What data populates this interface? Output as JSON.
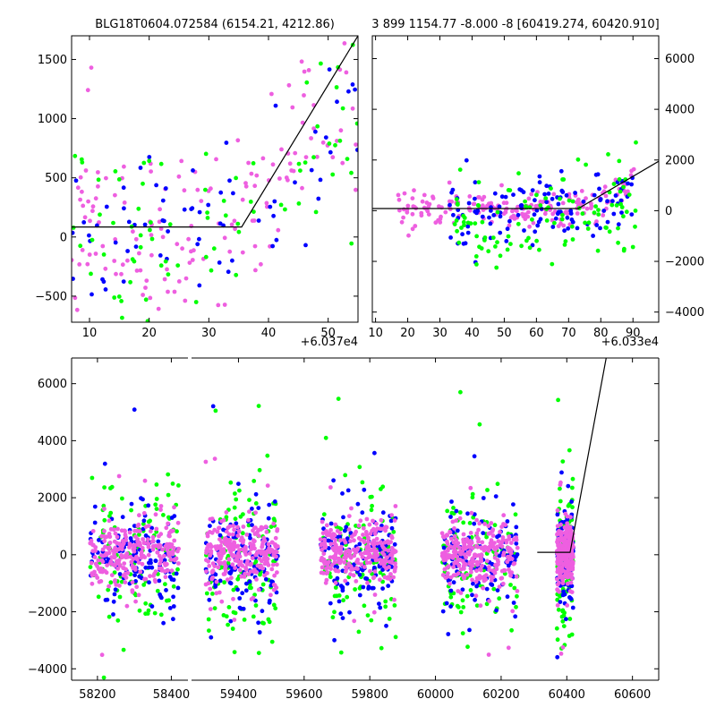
{
  "colors": {
    "blue": "#0000ff",
    "green": "#00ff00",
    "pink": "#ee5fe0",
    "model": "#000000"
  },
  "chart_data": [
    {
      "type": "scatter",
      "title": "BLG18T0604.072584 (6154.21, 4212.86)",
      "offset_label": "+6.037e4",
      "xlim": [
        7,
        55
      ],
      "ylim": [
        -720,
        1700
      ],
      "xticks": [
        10,
        20,
        30,
        40,
        50
      ],
      "yticks": [
        -500,
        0,
        500,
        1000,
        1500
      ],
      "ytick_labels": [
        "−500",
        "0",
        "500",
        "1000",
        "1500"
      ],
      "yaxis_side": "left",
      "model": {
        "x": [
          7,
          35.5,
          55
        ],
        "y": [
          85,
          85,
          1700
        ]
      },
      "series": [
        {
          "color_key": "pink",
          "seed": 11,
          "n": 150,
          "xr": [
            7,
            55
          ],
          "yc": 80,
          "ys": 380,
          "trend": {
            "x0": 35,
            "slope": 55
          }
        },
        {
          "color_key": "blue",
          "seed": 12,
          "n": 70,
          "xr": [
            7,
            55
          ],
          "yc": 60,
          "ys": 380,
          "trend": {
            "x0": 35,
            "slope": 50
          }
        },
        {
          "color_key": "green",
          "seed": 13,
          "n": 80,
          "xr": [
            7,
            55
          ],
          "yc": 0,
          "ys": 380,
          "trend": {
            "x0": 35,
            "slope": 45
          }
        }
      ]
    },
    {
      "type": "scatter",
      "title": "3 899 1154.77 -8.000 -8 [60419.274, 60420.910]",
      "offset_label": "+6.033e4",
      "xlim": [
        9,
        98
      ],
      "ylim": [
        -4400,
        6900
      ],
      "xticks": [
        10,
        20,
        30,
        40,
        50,
        60,
        70,
        80,
        90
      ],
      "yticks": [
        -4000,
        -2000,
        0,
        2000,
        4000,
        6000
      ],
      "ytick_labels": [
        "−4000",
        "−2000",
        "0",
        "2000",
        "4000",
        "6000"
      ],
      "yaxis_side": "right",
      "model": {
        "x": [
          9,
          73,
          98
        ],
        "y": [
          85,
          85,
          1950
        ]
      },
      "series": [
        {
          "color_key": "pink",
          "seed": 21,
          "n": 190,
          "xr": [
            17,
            91
          ],
          "yc": 100,
          "ys": 350,
          "trend": {
            "x0": 78,
            "slope": 90
          }
        },
        {
          "color_key": "blue",
          "seed": 22,
          "n": 120,
          "xr": [
            33,
            91
          ],
          "yc": -100,
          "ys": 650,
          "trend": {
            "x0": 78,
            "slope": 80
          }
        },
        {
          "color_key": "green",
          "seed": 23,
          "n": 110,
          "xr": [
            33,
            91
          ],
          "yc": -250,
          "ys": 900,
          "trend": {
            "x0": 78,
            "slope": 70
          }
        }
      ]
    },
    {
      "type": "scatter",
      "title": "",
      "broken_axis": true,
      "segments": [
        {
          "xlim": [
            58130,
            58445
          ],
          "xticks": [
            58200,
            58400
          ]
        },
        {
          "xlim": [
            59257,
            60680
          ],
          "xticks": [
            59400,
            59600,
            59800,
            60000,
            60200,
            60400,
            60600
          ]
        }
      ],
      "ylim": [
        -4400,
        6900
      ],
      "yticks": [
        -4000,
        -2000,
        0,
        2000,
        4000,
        6000
      ],
      "ytick_labels": [
        "−4000",
        "−2000",
        "0",
        "2000",
        "4000",
        "6000"
      ],
      "model": {
        "x": [
          60310,
          60410,
          60520
        ],
        "y": [
          85,
          85,
          6900
        ]
      },
      "seasons": [
        {
          "x": [
            58180,
            58420
          ]
        },
        {
          "x": [
            59300,
            59520
          ]
        },
        {
          "x": [
            59650,
            59880
          ]
        },
        {
          "x": [
            60020,
            60250
          ]
        },
        {
          "x": [
            60370,
            60420
          ]
        }
      ],
      "series": [
        {
          "color_key": "green",
          "seed": 31,
          "n_per_season": 110,
          "yc": -150,
          "ys": 1200
        },
        {
          "color_key": "blue",
          "seed": 32,
          "n_per_season": 130,
          "yc": -100,
          "ys": 800
        },
        {
          "color_key": "pink",
          "seed": 33,
          "n_per_season": 260,
          "yc": 50,
          "ys": 550
        }
      ]
    }
  ]
}
